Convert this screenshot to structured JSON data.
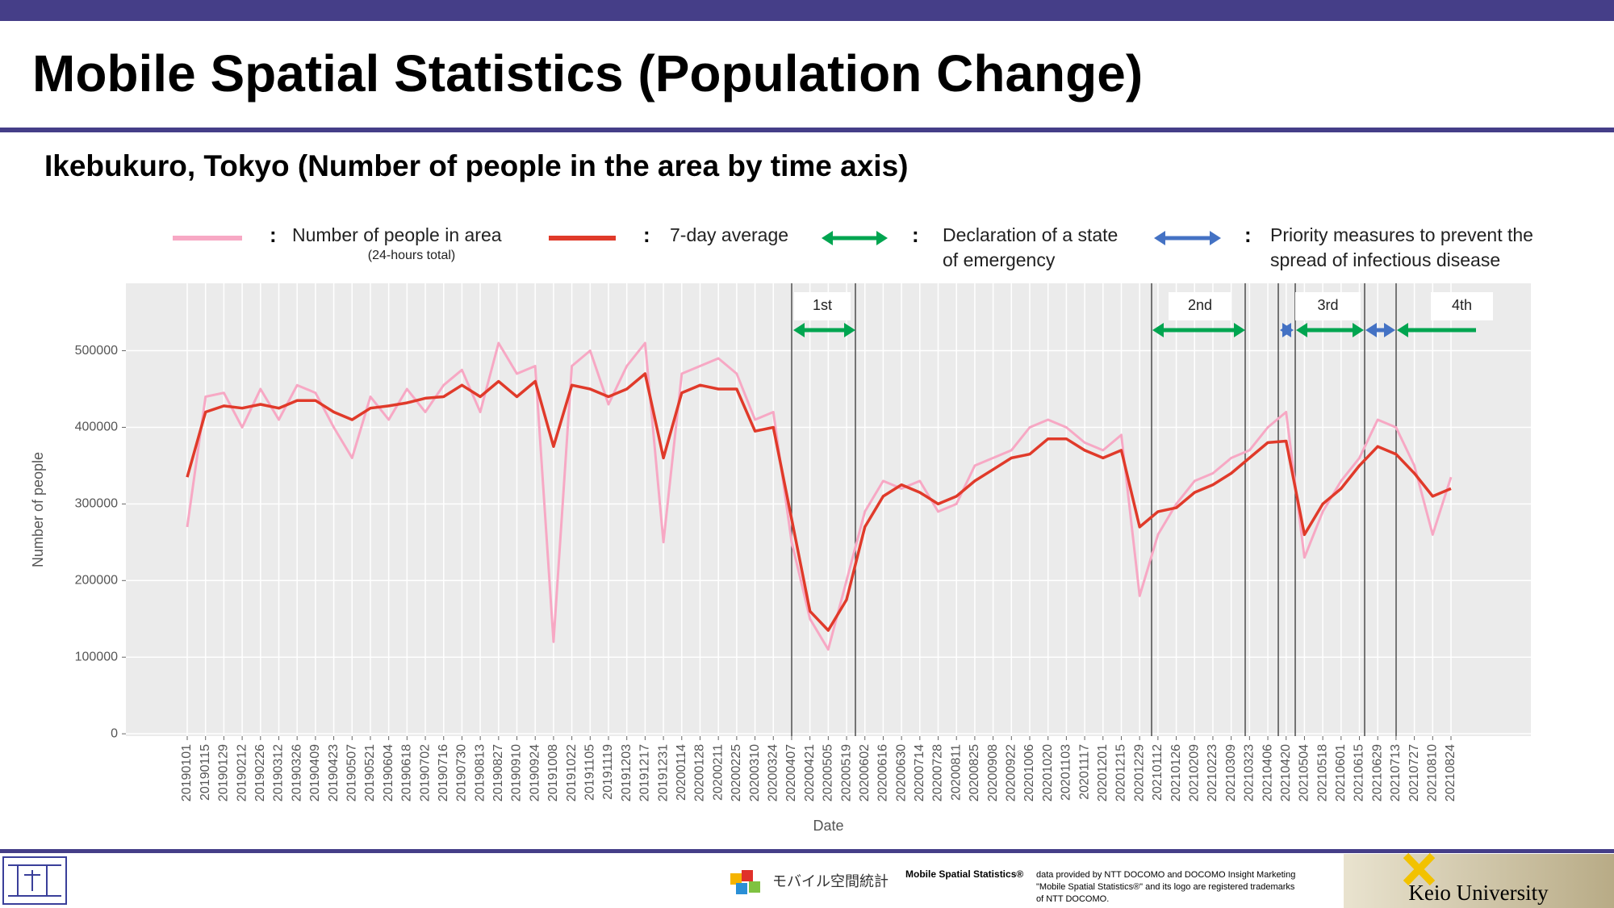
{
  "header": {
    "title": "Mobile Spatial Statistics (Population Change)",
    "subtitle": "Ikebukuro, Tokyo (Number of people in the area by time axis)"
  },
  "chart_data": {
    "type": "line",
    "x_label": "Date",
    "y_label": "Number of people",
    "categories": [
      "20190101",
      "20190115",
      "20190129",
      "20190212",
      "20190226",
      "20190312",
      "20190326",
      "20190409",
      "20190423",
      "20190507",
      "20190521",
      "20190604",
      "20190618",
      "20190702",
      "20190716",
      "20190730",
      "20190813",
      "20190827",
      "20190910",
      "20190924",
      "20191008",
      "20191022",
      "20191105",
      "20191119",
      "20191203",
      "20191217",
      "20191231",
      "20200114",
      "20200128",
      "20200211",
      "20200225",
      "20200310",
      "20200324",
      "20200407",
      "20200421",
      "20200505",
      "20200519",
      "20200602",
      "20200616",
      "20200630",
      "20200714",
      "20200728",
      "20200811",
      "20200825",
      "20200908",
      "20200922",
      "20201006",
      "20201020",
      "20201103",
      "20201117",
      "20201201",
      "20201215",
      "20201229",
      "20210112",
      "20210126",
      "20210209",
      "20210223",
      "20210309",
      "20210323",
      "20210406",
      "20210420",
      "20210504",
      "20210518",
      "20210601",
      "20210615",
      "20210629",
      "20210713",
      "20210727",
      "20210810",
      "20210824"
    ],
    "series": [
      {
        "name": "Number of people in area",
        "legend_note": "(24-hours total)",
        "color": "#f7a8c4",
        "values": [
          270000,
          440000,
          445000,
          400000,
          450000,
          410000,
          455000,
          445000,
          400000,
          360000,
          440000,
          410000,
          450000,
          420000,
          455000,
          475000,
          420000,
          510000,
          470000,
          480000,
          120000,
          480000,
          500000,
          430000,
          480000,
          510000,
          250000,
          470000,
          480000,
          490000,
          470000,
          410000,
          420000,
          250000,
          150000,
          110000,
          200000,
          290000,
          330000,
          320000,
          330000,
          290000,
          300000,
          350000,
          360000,
          370000,
          400000,
          410000,
          400000,
          380000,
          370000,
          390000,
          180000,
          260000,
          300000,
          330000,
          340000,
          360000,
          370000,
          400000,
          420000,
          230000,
          290000,
          330000,
          360000,
          410000,
          400000,
          350000,
          260000,
          335000
        ]
      },
      {
        "name": "7-day average",
        "color": "#e03a2a",
        "values": [
          335000,
          420000,
          428000,
          425000,
          430000,
          425000,
          435000,
          435000,
          420000,
          410000,
          425000,
          428000,
          432000,
          438000,
          440000,
          455000,
          440000,
          460000,
          440000,
          460000,
          375000,
          455000,
          450000,
          440000,
          450000,
          470000,
          360000,
          445000,
          455000,
          450000,
          450000,
          395000,
          400000,
          280000,
          160000,
          135000,
          175000,
          270000,
          310000,
          325000,
          315000,
          300000,
          310000,
          330000,
          345000,
          360000,
          365000,
          385000,
          385000,
          370000,
          360000,
          370000,
          270000,
          290000,
          295000,
          315000,
          325000,
          340000,
          360000,
          380000,
          382000,
          260000,
          300000,
          320000,
          350000,
          375000,
          365000,
          340000,
          310000,
          320000
        ]
      }
    ],
    "ylim": [
      -3000,
      588000
    ],
    "yticks": [
      0,
      100000,
      200000,
      300000,
      400000,
      500000
    ],
    "grid": true,
    "legend_separator": ":",
    "emergency": {
      "legend": [
        "Declaration of a state",
        "of emergency"
      ],
      "color": "#00a550",
      "labels": [
        "1st",
        "2nd",
        "3rd",
        "4th"
      ]
    },
    "priority": {
      "legend": [
        "Priority measures to prevent the",
        "spread of infectious disease"
      ],
      "color": "#4472c4"
    }
  },
  "footer": {
    "logo_text": "モバイル空間統計",
    "brand": "Mobile Spatial Statistics®",
    "credit": [
      "data provided by NTT DOCOMO and DOCOMO Insight Marketing",
      "\"Mobile Spatial Statistics®\" and its logo are registered trademarks",
      "of NTT DOCOMO."
    ],
    "university": "Keio University"
  }
}
